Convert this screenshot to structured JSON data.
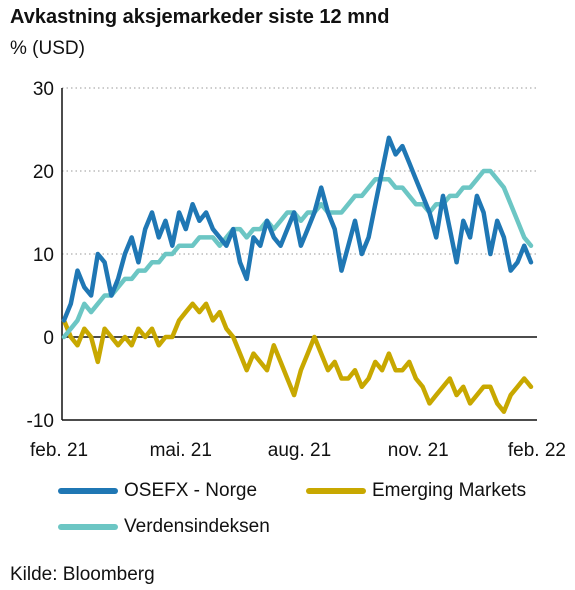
{
  "chart_data": {
    "type": "line",
    "title": "Avkastning aksjemarkeder siste 12 mnd",
    "ylabel": "% (USD)",
    "ylim": [
      -10,
      30
    ],
    "yticks": [
      "30",
      "20",
      "10",
      "0",
      "-10"
    ],
    "ytick_values": [
      30,
      20,
      10,
      0,
      -10
    ],
    "xticks": [
      "feb. 21",
      "mai. 21",
      "aug. 21",
      "nov. 21",
      "feb. 22"
    ],
    "grid": "horizontal-dotted",
    "legend_position": "bottom",
    "source": "Kilde: Bloomberg",
    "series": [
      {
        "name": "OSEFX - Norge",
        "color": "#1f77b4",
        "values": [
          2,
          4,
          8,
          6,
          5,
          10,
          9,
          5,
          7,
          10,
          12,
          9,
          13,
          15,
          12,
          14,
          11,
          15,
          13,
          16,
          14,
          15,
          13,
          12,
          11,
          13,
          9,
          7,
          12,
          11,
          14,
          12,
          11,
          13,
          15,
          11,
          13,
          15,
          18,
          15,
          13,
          8,
          11,
          14,
          10,
          12,
          16,
          20,
          24,
          22,
          23,
          21,
          19,
          17,
          15,
          12,
          17,
          13,
          9,
          14,
          12,
          17,
          15,
          10,
          14,
          12,
          8,
          9,
          11,
          9
        ]
      },
      {
        "name": "Emerging Markets",
        "color": "#c8a800",
        "values": [
          2,
          0,
          -1,
          1,
          0,
          -3,
          1,
          0,
          -1,
          0,
          -1,
          1,
          0,
          1,
          -1,
          0,
          0,
          2,
          3,
          4,
          3,
          4,
          2,
          3,
          1,
          0,
          -2,
          -4,
          -2,
          -3,
          -4,
          -1,
          -3,
          -5,
          -7,
          -4,
          -2,
          0,
          -2,
          -4,
          -3,
          -5,
          -5,
          -4,
          -6,
          -5,
          -3,
          -4,
          -2,
          -4,
          -4,
          -3,
          -5,
          -6,
          -8,
          -7,
          -6,
          -5,
          -7,
          -6,
          -8,
          -7,
          -6,
          -6,
          -8,
          -9,
          -7,
          -6,
          -5,
          -6
        ]
      },
      {
        "name": "Verdensindeksen",
        "color": "#6cc6c4",
        "values": [
          0,
          1,
          2,
          4,
          3,
          4,
          5,
          5,
          6,
          7,
          7,
          8,
          8,
          9,
          9,
          10,
          10,
          11,
          11,
          11,
          12,
          12,
          12,
          11,
          12,
          13,
          13,
          12,
          13,
          13,
          14,
          13,
          14,
          15,
          15,
          14,
          15,
          15,
          16,
          15,
          15,
          15,
          16,
          17,
          17,
          18,
          19,
          19,
          19,
          18,
          18,
          17,
          16,
          16,
          15,
          16,
          16,
          17,
          17,
          18,
          18,
          19,
          20,
          20,
          19,
          18,
          16,
          14,
          12,
          11
        ]
      }
    ]
  }
}
